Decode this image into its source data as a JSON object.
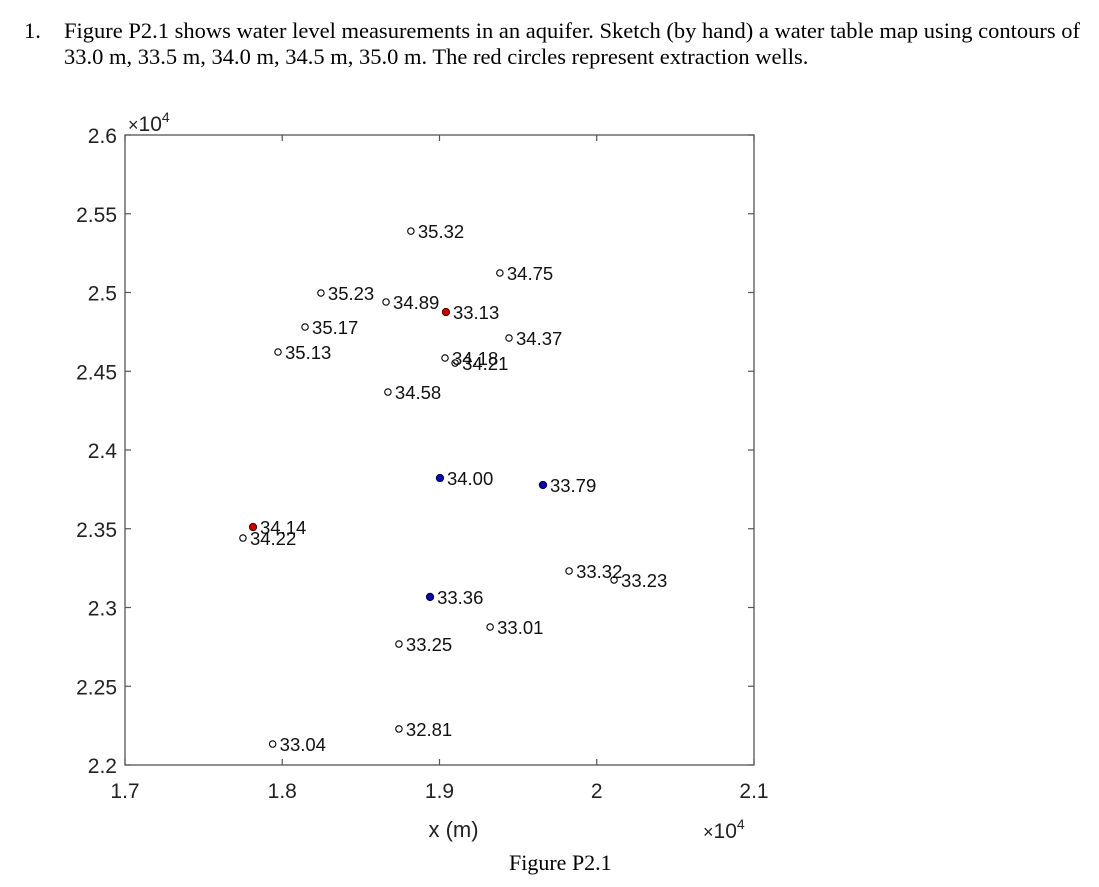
{
  "problem": {
    "number": "1.",
    "text": "Figure P2.1 shows water level measurements in an aquifer.  Sketch (by hand) a water table map using contours of 33.0 m, 33.5 m, 34.0 m, 34.5 m, 35.0 m. The red circles represent extraction wells."
  },
  "figure": {
    "caption": "Figure P2.1"
  },
  "chart_data": {
    "type": "scatter",
    "title": "",
    "xlabel": "x (m)",
    "ylabel": "",
    "xlim": [
      17000,
      21000
    ],
    "ylim": [
      22000,
      26000
    ],
    "x_ticks": [
      17000,
      18000,
      19000,
      20000,
      21000
    ],
    "x_tick_labels": [
      "1.7",
      "1.8",
      "1.9",
      "2",
      "2.1"
    ],
    "y_ticks": [
      22000,
      22500,
      23000,
      23500,
      24000,
      24500,
      25000,
      25500,
      26000
    ],
    "y_tick_labels": [
      "2.2",
      "2.25",
      "2.3",
      "2.35",
      "2.4",
      "2.45",
      "2.5",
      "2.55",
      "2.6"
    ],
    "x_exponent_label": "×10^4",
    "y_exponent_label": "×10^4",
    "grid": false,
    "legend": null,
    "marker_styles": {
      "observation": {
        "fill": "none",
        "stroke": "#000000",
        "description": "open circle"
      },
      "extraction": {
        "fill": "#d00000",
        "stroke": "#600000",
        "description": "red filled circle (extraction well)"
      },
      "blue": {
        "fill": "#0a0aa8",
        "stroke": "#000060",
        "description": "blue filled circle"
      }
    },
    "points": [
      {
        "x": 18818,
        "y": 25390,
        "label": "35.32",
        "type": "observation"
      },
      {
        "x": 19384,
        "y": 25124,
        "label": "34.75",
        "type": "observation"
      },
      {
        "x": 18246,
        "y": 24997,
        "label": "35.23",
        "type": "observation"
      },
      {
        "x": 18660,
        "y": 24940,
        "label": "34.89",
        "type": "observation"
      },
      {
        "x": 19041,
        "y": 24876,
        "label": "33.13",
        "type": "extraction"
      },
      {
        "x": 18145,
        "y": 24781,
        "label": "35.17",
        "type": "observation"
      },
      {
        "x": 19442,
        "y": 24711,
        "label": "34.37",
        "type": "observation"
      },
      {
        "x": 17973,
        "y": 24622,
        "label": "35.13",
        "type": "observation"
      },
      {
        "x": 19035,
        "y": 24584,
        "label": "34.18",
        "type": "observation"
      },
      {
        "x": 19099,
        "y": 24552,
        "label": "34.21",
        "type": "observation"
      },
      {
        "x": 18672,
        "y": 24368,
        "label": "34.58",
        "type": "observation"
      },
      {
        "x": 19003,
        "y": 23822,
        "label": "34.00",
        "type": "blue"
      },
      {
        "x": 19658,
        "y": 23778,
        "label": "33.79",
        "type": "blue"
      },
      {
        "x": 17814,
        "y": 23511,
        "label": "34.14",
        "type": "extraction"
      },
      {
        "x": 17750,
        "y": 23441,
        "label": "34.22",
        "type": "observation"
      },
      {
        "x": 19824,
        "y": 23232,
        "label": "33.32",
        "type": "observation"
      },
      {
        "x": 20110,
        "y": 23175,
        "label": "33.23",
        "type": "observation"
      },
      {
        "x": 18940,
        "y": 23067,
        "label": "33.36",
        "type": "blue"
      },
      {
        "x": 19322,
        "y": 22876,
        "label": "33.01",
        "type": "observation"
      },
      {
        "x": 18742,
        "y": 22768,
        "label": "33.25",
        "type": "observation"
      },
      {
        "x": 18742,
        "y": 22229,
        "label": "32.81",
        "type": "observation"
      },
      {
        "x": 17939,
        "y": 22133,
        "label": "33.04",
        "type": "observation"
      }
    ]
  }
}
